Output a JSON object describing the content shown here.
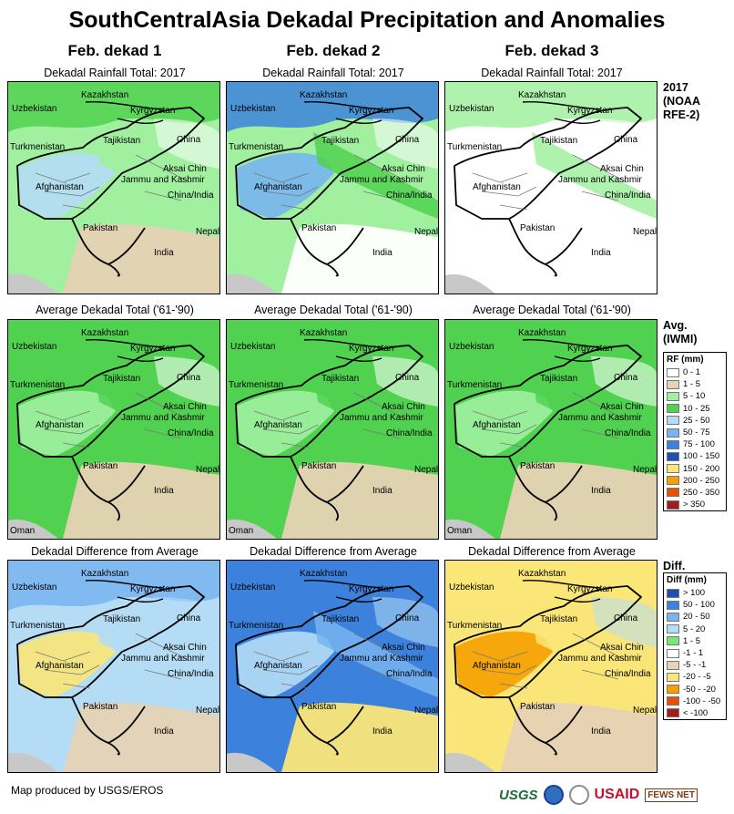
{
  "title": "SouthCentralAsia Dekadal Precipitation and Anomalies",
  "columns": [
    "Feb. dekad 1",
    "Feb. dekad 2",
    "Feb. dekad 3"
  ],
  "rows": [
    {
      "id": "rainfall",
      "map_title": "Dekadal Rainfall Total: 2017",
      "side_label": [
        "2017",
        "(NOAA",
        "RFE-2)"
      ],
      "show_oman": false
    },
    {
      "id": "average",
      "map_title": "Average Dekadal Total ('61-'90)",
      "side_label": [
        "Avg.",
        "(IWMI)"
      ],
      "show_oman": true
    },
    {
      "id": "difference",
      "map_title": "Dekadal Difference from Average",
      "side_label": [
        "Diff."
      ],
      "show_oman": false
    }
  ],
  "place_labels": {
    "kazakhstan": "Kazakhstan",
    "uzbekistan": "Uzbekistan",
    "kyrgyzstan": "Kyrgyzstan",
    "turkmenistan": "Turkmenistan",
    "tajikistan": "Tajikistan",
    "china": "China",
    "aksai_chin": "Aksai Chin",
    "jammu": "Jammu and Kashmir",
    "china_india": "China/India",
    "afghanistan": "Afghanistan",
    "pakistan": "Pakistan",
    "nepal": "Nepal",
    "india": "India",
    "oman": "Oman"
  },
  "rf_legend": {
    "title": "RF (mm)",
    "items": [
      {
        "label": "0 - 1",
        "color": "#ffffff"
      },
      {
        "label": "1 - 5",
        "color": "#e6d2b4"
      },
      {
        "label": "5 - 10",
        "color": "#a0f0a0"
      },
      {
        "label": "10 - 25",
        "color": "#50d250"
      },
      {
        "label": "25 - 50",
        "color": "#b4dcf5"
      },
      {
        "label": "50 - 75",
        "color": "#78b4f0"
      },
      {
        "label": "75 - 100",
        "color": "#3c82dc"
      },
      {
        "label": "100 - 150",
        "color": "#1e50b4"
      },
      {
        "label": "150 - 200",
        "color": "#fae678"
      },
      {
        "label": "200 - 250",
        "color": "#f5a000"
      },
      {
        "label": "250 - 350",
        "color": "#e65000"
      },
      {
        "label": "> 350",
        "color": "#a01e1e"
      }
    ]
  },
  "diff_legend": {
    "title": "Diff (mm)",
    "items": [
      {
        "label": "> 100",
        "color": "#1e50b4"
      },
      {
        "label": "50 - 100",
        "color": "#3c82dc"
      },
      {
        "label": "20 - 50",
        "color": "#78b4f0"
      },
      {
        "label": "5 - 20",
        "color": "#b4dcf5"
      },
      {
        "label": "1 - 5",
        "color": "#78e678"
      },
      {
        "label": "-1 - 1",
        "color": "#ffffff"
      },
      {
        "label": "-5 - -1",
        "color": "#e6d2b4"
      },
      {
        "label": "-20 - -5",
        "color": "#fae678"
      },
      {
        "label": "-50 - -20",
        "color": "#f5a000"
      },
      {
        "label": "-100 - -50",
        "color": "#e65000"
      },
      {
        "label": "< -100",
        "color": "#a01e1e"
      }
    ]
  },
  "footer": "Map produced by USGS/EROS",
  "logos": {
    "usgs": "USGS",
    "usaid": "USAID",
    "fews": "FEWS NET"
  }
}
